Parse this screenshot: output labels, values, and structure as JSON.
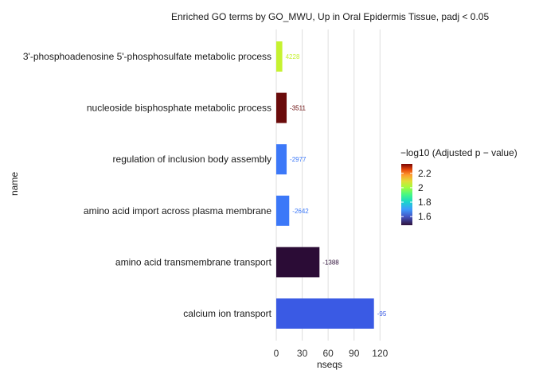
{
  "chart_data": {
    "type": "bar",
    "orientation": "horizontal",
    "title": "Enriched GO terms by GO_MWU, Up in Oral Epidermis Tissue, padj < 0.05",
    "xlabel": "nseqs",
    "ylabel": "name",
    "xlim": [
      0,
      128
    ],
    "xticks": [
      "0",
      "30",
      "60",
      "90",
      "120"
    ],
    "xtick_values": [
      0,
      30,
      60,
      90,
      120
    ],
    "grid": true,
    "legend_position": "right",
    "legend_title": "−log10 (Adjusted p − value)",
    "legend_ticks": [
      "2.2",
      "2",
      "1.8",
      "1.6"
    ],
    "legend_tick_values": [
      2.2,
      2.0,
      1.8,
      1.6
    ],
    "legend_range": [
      1.48,
      2.33
    ],
    "categories": [
      "3'-phosphoadenosine 5'-phosphosulfate metabolic process",
      "nucleoside bisphosphate metabolic process",
      "regulation of inclusion body assembly",
      "amino acid import across plasma membrane",
      "amino acid transmembrane transport",
      "calcium ion transport"
    ],
    "values": [
      7,
      12,
      12,
      15,
      50,
      113
    ],
    "labels": [
      "4228",
      "-3511",
      "-2977",
      "-2642",
      "-1388",
      "-95"
    ],
    "colors": [
      "#c6f230",
      "#6a0b0b",
      "#3c78f8",
      "#3c78f8",
      "#2b0c36",
      "#3a5ae4"
    ],
    "neg_log10_padj": [
      1.85,
      2.3,
      1.6,
      1.6,
      1.5,
      1.58
    ]
  }
}
